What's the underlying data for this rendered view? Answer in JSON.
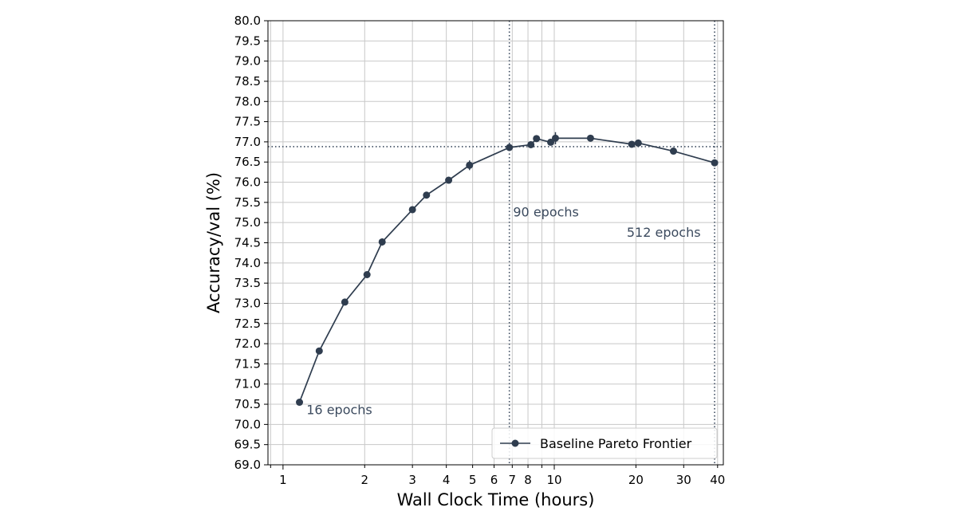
{
  "chart_data": {
    "type": "line",
    "xlabel": "Wall Clock Time (hours)",
    "ylabel": "Accuracy/val (%)",
    "x_scale": "log",
    "xlim": [
      0.88,
      42
    ],
    "ylim": [
      69.0,
      80.0
    ],
    "grid": true,
    "x_ticks_major": [
      1,
      10
    ],
    "x_tick_labels": [
      "1",
      "2",
      "3",
      "4",
      "5",
      "6",
      "7",
      "8",
      "10",
      "20",
      "30",
      "40"
    ],
    "x_tick_values": [
      1,
      2,
      3,
      4,
      5,
      6,
      7,
      8,
      10,
      20,
      30,
      40
    ],
    "y_tick_labels": [
      "69.0",
      "69.5",
      "70.0",
      "70.5",
      "71.0",
      "71.5",
      "72.0",
      "72.5",
      "73.0",
      "73.5",
      "74.0",
      "74.5",
      "75.0",
      "75.5",
      "76.0",
      "76.5",
      "77.0",
      "77.5",
      "78.0",
      "78.5",
      "79.0",
      "79.5",
      "80.0"
    ],
    "legend": {
      "position": "lower right",
      "entries": [
        "Baseline Pareto Frontier"
      ]
    },
    "series": [
      {
        "name": "Baseline Pareto Frontier",
        "color": "#2f3d4f",
        "x": [
          1.15,
          1.36,
          1.69,
          2.04,
          2.32,
          3.0,
          3.38,
          4.08,
          4.87,
          6.83,
          8.2,
          8.6,
          9.7,
          10.1,
          13.6,
          19.3,
          20.4,
          27.5,
          39.0
        ],
        "y": [
          70.55,
          71.82,
          73.03,
          73.71,
          74.52,
          75.32,
          75.68,
          76.05,
          76.42,
          76.86,
          76.93,
          77.08,
          76.99,
          77.09,
          77.09,
          76.94,
          76.97,
          76.77,
          76.48
        ],
        "err": [
          0.0,
          0.0,
          0.0,
          0.0,
          0.09,
          0.0,
          0.0,
          0.0,
          0.12,
          0.05,
          0.07,
          0.0,
          0.06,
          0.15,
          0.0,
          0.05,
          0.03,
          0.0,
          0.05
        ]
      }
    ],
    "reference_lines": {
      "vertical_x": [
        6.83,
        39.0
      ],
      "horizontal_y": [
        76.88
      ]
    },
    "annotations": [
      {
        "text": "16 epochs",
        "x": 1.22,
        "y": 70.25
      },
      {
        "text": "90 epochs",
        "x": 7.05,
        "y": 75.15
      },
      {
        "text": "512 epochs",
        "x": 18.5,
        "y": 74.65
      }
    ]
  }
}
